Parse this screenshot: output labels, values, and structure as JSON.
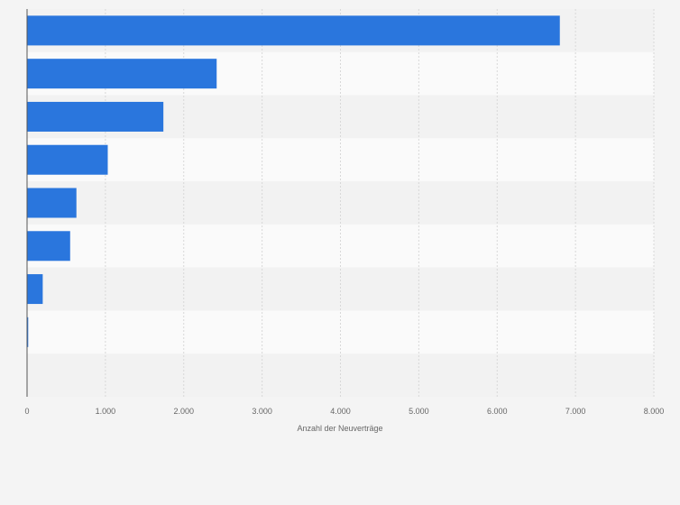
{
  "chart_data": {
    "type": "bar",
    "orientation": "horizontal",
    "categories": [
      "",
      "",
      "",
      "",
      "",
      "",
      "",
      "",
      ""
    ],
    "values": [
      6800,
      2420,
      1740,
      1030,
      630,
      550,
      200,
      15,
      0
    ],
    "xlabel": "Anzahl der Neuverträge",
    "ylabel": "",
    "xlim": [
      0,
      8000
    ],
    "xticks": [
      {
        "value": 0,
        "label": "0"
      },
      {
        "value": 1000,
        "label": "1.000"
      },
      {
        "value": 2000,
        "label": "2.000"
      },
      {
        "value": 3000,
        "label": "3.000"
      },
      {
        "value": 4000,
        "label": "4.000"
      },
      {
        "value": 5000,
        "label": "5.000"
      },
      {
        "value": 6000,
        "label": "6.000"
      },
      {
        "value": 7000,
        "label": "7.000"
      },
      {
        "value": 8000,
        "label": "8.000"
      }
    ],
    "grid": true,
    "bar_color": "#2a76dd",
    "band_colors": [
      "#f2f2f2",
      "#fafafa"
    ]
  }
}
